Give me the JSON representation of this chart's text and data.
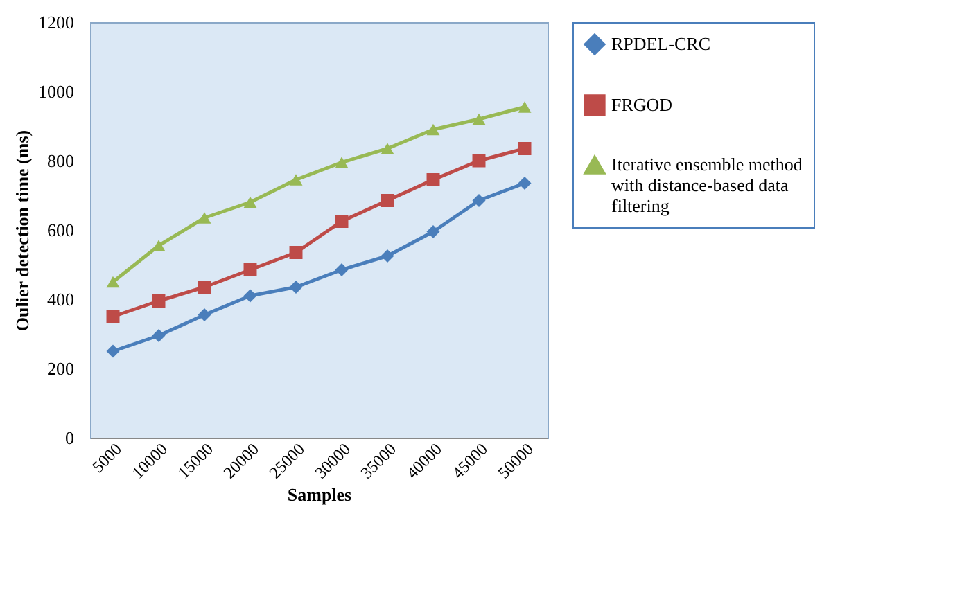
{
  "chart_data": {
    "type": "line",
    "xlabel": "Samples",
    "ylabel": "Oulier detection time (ms)",
    "categories": [
      "5000",
      "10000",
      "15000",
      "20000",
      "25000",
      "30000",
      "35000",
      "40000",
      "45000",
      "50000"
    ],
    "series": [
      {
        "name": "RPDEL-CRC",
        "color": "#4a7ebb",
        "marker": "diamond",
        "values": [
          250,
          295,
          355,
          410,
          435,
          485,
          525,
          595,
          685,
          735
        ]
      },
      {
        "name": "FRGOD",
        "color": "#be4b48",
        "marker": "square",
        "values": [
          350,
          395,
          435,
          485,
          535,
          625,
          685,
          745,
          800,
          835
        ]
      },
      {
        "name": "Iterative ensemble method with distance-based data filtering",
        "color": "#98b954",
        "marker": "triangle",
        "values": [
          450,
          555,
          635,
          680,
          745,
          795,
          835,
          890,
          920,
          955
        ]
      }
    ],
    "ylim": [
      0,
      1200
    ],
    "yticks": [
      0,
      200,
      400,
      600,
      800,
      1000,
      1200
    ],
    "grid": false,
    "legend": "right",
    "line_style": "solid"
  }
}
